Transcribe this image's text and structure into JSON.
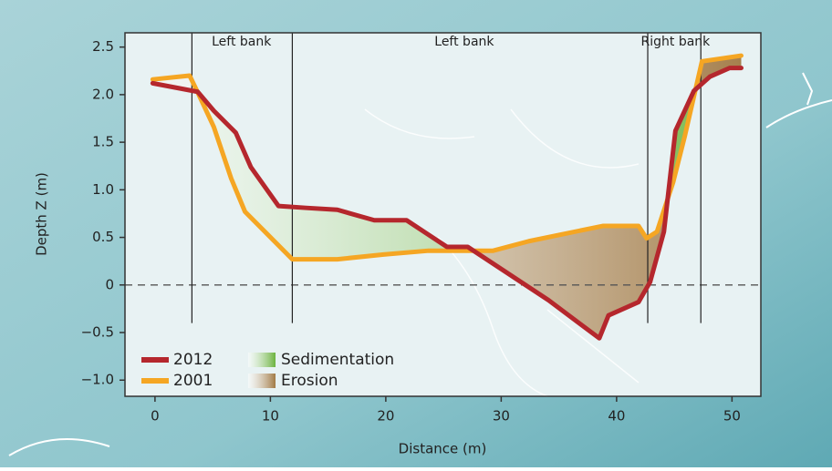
{
  "chart_data": {
    "type": "line",
    "xlabel": "Distance (m)",
    "ylabel": "Depth Z (m)",
    "xlim": [
      -2.6,
      52.5
    ],
    "ylim": [
      -1.17,
      2.65
    ],
    "xticks": [
      0,
      10,
      20,
      30,
      40,
      50
    ],
    "yticks": [
      {
        "value": -1.0,
        "label": "−1.0"
      },
      {
        "value": -0.5,
        "label": "−0.5"
      },
      0,
      0.5,
      {
        "value": 1.0,
        "label": "1.0"
      },
      1.5,
      {
        "value": 2.0,
        "label": "2.0"
      },
      2.5
    ],
    "hline": 0,
    "vlines": {
      "x": [
        3.2,
        11.9,
        42.7,
        47.3
      ],
      "ymin": -0.4
    },
    "annotations": [
      {
        "text": "Left bank",
        "x": 7.5
      },
      {
        "text": "Left bank",
        "x": 26.8
      },
      {
        "text": "Right bank",
        "x": 45.1
      }
    ],
    "series": [
      {
        "name": "2012",
        "color": "#b5272d",
        "x": [
          -0.2,
          3.7,
          5.1,
          7.0,
          8.3,
          10.7,
          13.1,
          15.8,
          19.0,
          21.8,
          25.3,
          27.1,
          34.1,
          38.5,
          39.3,
          41.9,
          42.9,
          44.1,
          45.1,
          46.7,
          48.1,
          49.8,
          50.8
        ],
        "values": [
          2.12,
          2.03,
          1.83,
          1.6,
          1.24,
          0.83,
          0.81,
          0.79,
          0.68,
          0.68,
          0.4,
          0.4,
          -0.16,
          -0.56,
          -0.32,
          -0.18,
          0.03,
          0.56,
          1.62,
          2.04,
          2.19,
          2.28,
          2.28
        ]
      },
      {
        "name": "2001",
        "color": "#f5a623",
        "x": [
          -0.2,
          3.0,
          3.6,
          5.1,
          6.6,
          7.8,
          11.9,
          15.8,
          19.8,
          23.7,
          29.3,
          32.4,
          38.8,
          41.9,
          42.6,
          43.5,
          44.9,
          45.9,
          47.4,
          50.8
        ],
        "values": [
          2.16,
          2.2,
          2.05,
          1.66,
          1.12,
          0.77,
          0.27,
          0.27,
          0.32,
          0.36,
          0.36,
          0.46,
          0.62,
          0.62,
          0.49,
          0.56,
          1.08,
          1.56,
          2.35,
          2.41
        ]
      }
    ],
    "areas": [
      {
        "name": "Sedimentation",
        "color": "#6cb33f"
      },
      {
        "name": "Erosion",
        "color": "#a27a45"
      }
    ]
  }
}
